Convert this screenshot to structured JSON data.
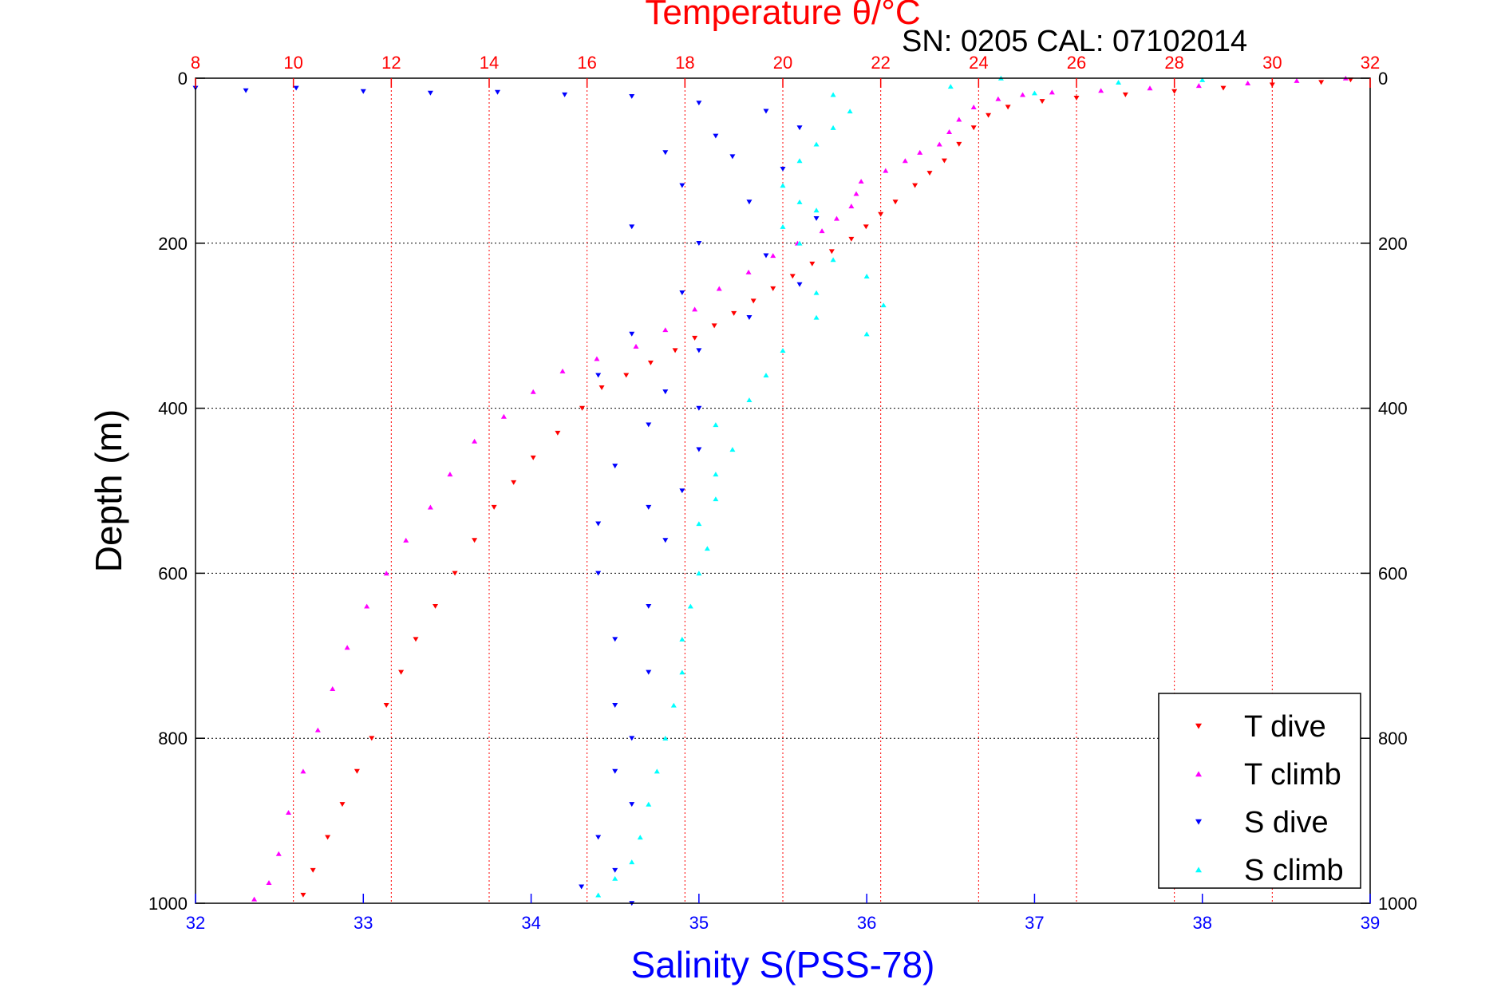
{
  "chart_data": {
    "type": "scatter",
    "title": "Temperature θ/°C",
    "annotation": "SN: 0205  CAL: 07102014",
    "ylabel": "Depth (m)",
    "xlabel_bottom": "Salinity S(PSS-78)",
    "xlabel_top": "Temperature θ/°C",
    "y_axis": {
      "range": [
        0,
        1000
      ],
      "inverted": true,
      "ticks": [
        0,
        200,
        400,
        600,
        800,
        1000
      ],
      "tick_labels": [
        "0",
        "200",
        "400",
        "600",
        "800",
        "1000"
      ]
    },
    "x_bottom_axis": {
      "quantity": "Salinity",
      "range": [
        32,
        39
      ],
      "ticks": [
        32,
        33,
        34,
        35,
        36,
        37,
        38,
        39
      ],
      "tick_labels": [
        "32",
        "33",
        "34",
        "35",
        "36",
        "37",
        "38",
        "39"
      ],
      "color": "#0000ff"
    },
    "x_top_axis": {
      "quantity": "Temperature",
      "range": [
        8,
        32
      ],
      "ticks": [
        8,
        10,
        12,
        14,
        16,
        18,
        20,
        22,
        24,
        26,
        28,
        30,
        32
      ],
      "tick_labels": [
        "8",
        "10",
        "12",
        "14",
        "16",
        "18",
        "20",
        "22",
        "24",
        "26",
        "28",
        "30",
        "32"
      ],
      "color": "#ff0000"
    },
    "grid": {
      "horizontal": true,
      "horizontal_color": "#000000",
      "vertical": true,
      "vertical_color": "#ff0000",
      "style": "dotted"
    },
    "legend": {
      "position": "bottom-right"
    },
    "series": [
      {
        "name": "T dive",
        "axis": "temperature",
        "marker": "triangle-down",
        "color": "#ff0000",
        "points": [
          [
            31.6,
            2
          ],
          [
            31.0,
            5
          ],
          [
            30.0,
            8
          ],
          [
            29.0,
            12
          ],
          [
            28.0,
            16
          ],
          [
            27.0,
            20
          ],
          [
            26.0,
            24
          ],
          [
            25.3,
            28
          ],
          [
            24.6,
            35
          ],
          [
            24.2,
            45
          ],
          [
            23.9,
            60
          ],
          [
            23.6,
            80
          ],
          [
            23.3,
            100
          ],
          [
            23.0,
            115
          ],
          [
            22.7,
            130
          ],
          [
            22.3,
            150
          ],
          [
            22.0,
            165
          ],
          [
            21.7,
            180
          ],
          [
            21.4,
            195
          ],
          [
            21.0,
            210
          ],
          [
            20.6,
            225
          ],
          [
            20.2,
            240
          ],
          [
            19.8,
            255
          ],
          [
            19.4,
            270
          ],
          [
            19.0,
            285
          ],
          [
            18.6,
            300
          ],
          [
            18.2,
            315
          ],
          [
            17.8,
            330
          ],
          [
            17.3,
            345
          ],
          [
            16.8,
            360
          ],
          [
            16.3,
            375
          ],
          [
            15.9,
            400
          ],
          [
            15.4,
            430
          ],
          [
            14.9,
            460
          ],
          [
            14.5,
            490
          ],
          [
            14.1,
            520
          ],
          [
            13.7,
            560
          ],
          [
            13.3,
            600
          ],
          [
            12.9,
            640
          ],
          [
            12.5,
            680
          ],
          [
            12.2,
            720
          ],
          [
            11.9,
            760
          ],
          [
            11.6,
            800
          ],
          [
            11.3,
            840
          ],
          [
            11.0,
            880
          ],
          [
            10.7,
            920
          ],
          [
            10.4,
            960
          ],
          [
            10.2,
            990
          ]
        ]
      },
      {
        "name": "T climb",
        "axis": "temperature",
        "marker": "triangle-up",
        "color": "#ff00ff",
        "points": [
          [
            31.5,
            0
          ],
          [
            30.5,
            3
          ],
          [
            29.5,
            6
          ],
          [
            28.5,
            9
          ],
          [
            27.5,
            12
          ],
          [
            26.5,
            15
          ],
          [
            25.5,
            17
          ],
          [
            24.9,
            20
          ],
          [
            24.4,
            25
          ],
          [
            23.9,
            35
          ],
          [
            23.6,
            50
          ],
          [
            23.4,
            65
          ],
          [
            23.2,
            80
          ],
          [
            22.8,
            90
          ],
          [
            22.5,
            100
          ],
          [
            22.1,
            112
          ],
          [
            21.6,
            125
          ],
          [
            21.5,
            140
          ],
          [
            21.4,
            155
          ],
          [
            21.1,
            170
          ],
          [
            20.8,
            185
          ],
          [
            20.3,
            200
          ],
          [
            19.8,
            215
          ],
          [
            19.3,
            235
          ],
          [
            18.7,
            255
          ],
          [
            18.2,
            280
          ],
          [
            17.6,
            305
          ],
          [
            17.0,
            325
          ],
          [
            16.2,
            340
          ],
          [
            15.5,
            355
          ],
          [
            14.9,
            380
          ],
          [
            14.3,
            410
          ],
          [
            13.7,
            440
          ],
          [
            13.2,
            480
          ],
          [
            12.8,
            520
          ],
          [
            12.3,
            560
          ],
          [
            11.9,
            600
          ],
          [
            11.5,
            640
          ],
          [
            11.1,
            690
          ],
          [
            10.8,
            740
          ],
          [
            10.5,
            790
          ],
          [
            10.2,
            840
          ],
          [
            9.9,
            890
          ],
          [
            9.7,
            940
          ],
          [
            9.5,
            975
          ],
          [
            9.2,
            995
          ]
        ]
      },
      {
        "name": "S dive",
        "axis": "salinity",
        "marker": "triangle-down",
        "color": "#0000ff",
        "points": [
          [
            32.0,
            12
          ],
          [
            32.3,
            15
          ],
          [
            32.6,
            12
          ],
          [
            33.0,
            16
          ],
          [
            33.4,
            18
          ],
          [
            33.8,
            17
          ],
          [
            34.2,
            20
          ],
          [
            34.6,
            22
          ],
          [
            35.0,
            30
          ],
          [
            35.4,
            40
          ],
          [
            35.6,
            60
          ],
          [
            35.1,
            70
          ],
          [
            34.8,
            90
          ],
          [
            35.2,
            95
          ],
          [
            35.5,
            110
          ],
          [
            34.9,
            130
          ],
          [
            35.3,
            150
          ],
          [
            35.7,
            170
          ],
          [
            34.6,
            180
          ],
          [
            35.0,
            200
          ],
          [
            35.4,
            215
          ],
          [
            35.6,
            250
          ],
          [
            34.9,
            260
          ],
          [
            35.3,
            290
          ],
          [
            34.6,
            310
          ],
          [
            35.0,
            330
          ],
          [
            34.4,
            360
          ],
          [
            34.8,
            380
          ],
          [
            35.0,
            400
          ],
          [
            34.7,
            420
          ],
          [
            35.0,
            450
          ],
          [
            34.5,
            470
          ],
          [
            34.9,
            500
          ],
          [
            34.7,
            520
          ],
          [
            34.4,
            540
          ],
          [
            34.8,
            560
          ],
          [
            34.4,
            600
          ],
          [
            34.7,
            640
          ],
          [
            34.5,
            680
          ],
          [
            34.7,
            720
          ],
          [
            34.5,
            760
          ],
          [
            34.6,
            800
          ],
          [
            34.5,
            840
          ],
          [
            34.6,
            880
          ],
          [
            34.4,
            920
          ],
          [
            34.5,
            960
          ],
          [
            34.3,
            980
          ],
          [
            34.6,
            1000
          ]
        ]
      },
      {
        "name": "S climb",
        "axis": "salinity",
        "marker": "triangle-up",
        "color": "#00ffff",
        "points": [
          [
            36.8,
            0
          ],
          [
            37.5,
            5
          ],
          [
            38.0,
            2
          ],
          [
            36.5,
            10
          ],
          [
            37.0,
            18
          ],
          [
            35.8,
            20
          ],
          [
            35.9,
            40
          ],
          [
            35.8,
            60
          ],
          [
            35.7,
            80
          ],
          [
            35.6,
            100
          ],
          [
            35.5,
            130
          ],
          [
            35.6,
            150
          ],
          [
            35.7,
            160
          ],
          [
            35.5,
            180
          ],
          [
            35.6,
            200
          ],
          [
            35.8,
            220
          ],
          [
            36.0,
            240
          ],
          [
            35.7,
            260
          ],
          [
            36.1,
            275
          ],
          [
            35.7,
            290
          ],
          [
            36.0,
            310
          ],
          [
            35.5,
            330
          ],
          [
            35.4,
            360
          ],
          [
            35.3,
            390
          ],
          [
            35.1,
            420
          ],
          [
            35.2,
            450
          ],
          [
            35.1,
            480
          ],
          [
            35.1,
            510
          ],
          [
            35.0,
            540
          ],
          [
            35.05,
            570
          ],
          [
            35.0,
            600
          ],
          [
            34.95,
            640
          ],
          [
            34.9,
            680
          ],
          [
            34.9,
            720
          ],
          [
            34.85,
            760
          ],
          [
            34.8,
            800
          ],
          [
            34.75,
            840
          ],
          [
            34.7,
            880
          ],
          [
            34.65,
            920
          ],
          [
            34.6,
            950
          ],
          [
            34.5,
            970
          ],
          [
            34.4,
            990
          ]
        ]
      }
    ]
  }
}
